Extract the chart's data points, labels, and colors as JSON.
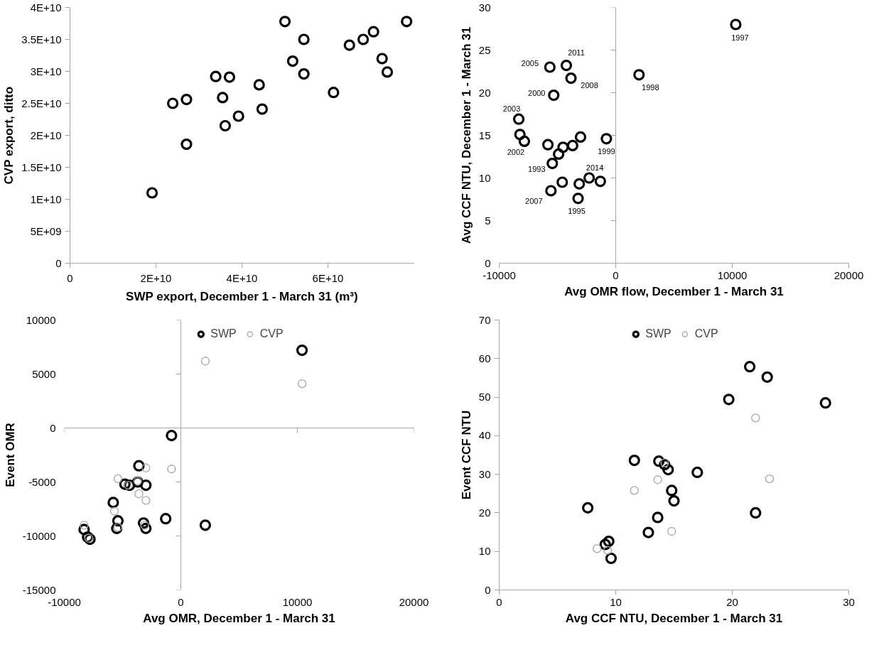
{
  "chart_data": [
    {
      "type": "scatter",
      "xlabel": "SWP export, December 1 - March 31 (m³)",
      "ylabel": "CVP export, ditto",
      "marker": "circle",
      "xlim": [
        0,
        80000000000
      ],
      "ylim": [
        0,
        40000000000
      ],
      "xticks": [
        0,
        {
          "value": 20000000000,
          "label": "2E+10"
        },
        {
          "value": 40000000000,
          "label": "4E+10"
        },
        {
          "value": 60000000000,
          "label": "6E+10"
        }
      ],
      "yticks": [
        0,
        {
          "value": 5000000000,
          "label": "5E+09"
        },
        {
          "value": 10000000000,
          "label": "1E+10"
        },
        {
          "value": 15000000000,
          "label": "1.5E+10"
        },
        {
          "value": 20000000000,
          "label": "2E+10"
        },
        {
          "value": 25000000000,
          "label": "2.5E+10"
        },
        {
          "value": 30000000000,
          "label": "3E+10"
        },
        {
          "value": 35000000000,
          "label": "3.5E+10"
        },
        {
          "value": 40000000000,
          "label": "4E+10"
        }
      ],
      "series": [
        {
          "color": "#000000",
          "x": [
            50000000000,
            54400000000,
            51800000000,
            54400000000,
            78300000000,
            70600000000,
            68200000000,
            65000000000,
            72600000000,
            73800000000,
            61300000000,
            33900000000,
            37100000000,
            44000000000,
            35500000000,
            27100000000,
            23900000000,
            44700000000,
            39200000000,
            36100000000,
            27100000000,
            19100000000
          ],
          "values": [
            37800000000,
            35000000000,
            31600000000,
            29600000000,
            37800000000,
            36200000000,
            35000000000,
            34100000000,
            32000000000,
            29900000000,
            26700000000,
            29200000000,
            29100000000,
            27900000000,
            25900000000,
            25600000000,
            25000000000,
            24100000000,
            23000000000,
            21500000000,
            18600000000,
            11000000000
          ]
        }
      ]
    },
    {
      "type": "scatter",
      "xlabel": "Avg OMR flow, December 1 - March 31",
      "ylabel": "Avg CCF NTU, December 1 - March 31",
      "marker": "circle",
      "xlim": [
        -10000,
        20000
      ],
      "ylim": [
        0,
        30
      ],
      "xticks": [
        -10000,
        0,
        10000,
        20000
      ],
      "yticks": [
        0,
        5,
        10,
        15,
        20,
        25,
        30
      ],
      "series": [
        {
          "color": "#000000",
          "x": [
            10300,
            2000,
            -5650,
            -4240,
            -3840,
            -5320,
            -8320,
            -8220,
            -7840,
            -5820,
            -4520,
            -3700,
            -3020,
            -800,
            -4900,
            -5440,
            -4590,
            -5560,
            -3130,
            -2280,
            -1320,
            -3230
          ],
          "values": [
            28.0,
            22.1,
            23.0,
            23.2,
            21.7,
            19.7,
            16.9,
            15.1,
            14.3,
            13.9,
            13.6,
            13.8,
            14.8,
            14.6,
            12.8,
            11.7,
            9.5,
            8.5,
            9.3,
            10.0,
            9.6,
            7.6
          ]
        }
      ],
      "annotations": [
        {
          "text": "1997",
          "x": 10300,
          "y": 28.0
        },
        {
          "text": "1998",
          "x": 2000,
          "y": 22.1
        },
        {
          "text": "2005",
          "x": -5650,
          "y": 23.0
        },
        {
          "text": "2011",
          "x": -4240,
          "y": 23.2
        },
        {
          "text": "2008",
          "x": -3840,
          "y": 21.7
        },
        {
          "text": "2000",
          "x": -5320,
          "y": 19.7
        },
        {
          "text": "2003",
          "x": -8320,
          "y": 16.9
        },
        {
          "text": "2002",
          "x": -7840,
          "y": 14.3
        },
        {
          "text": "1999",
          "x": -800,
          "y": 14.6
        },
        {
          "text": "1993",
          "x": -5440,
          "y": 11.7
        },
        {
          "text": "2014",
          "x": -2280,
          "y": 10.0
        },
        {
          "text": "2007",
          "x": -5560,
          "y": 8.5
        },
        {
          "text": "1995",
          "x": -3230,
          "y": 7.6
        }
      ]
    },
    {
      "type": "scatter",
      "xlabel": "Avg OMR, December 1 - March 31",
      "ylabel": "Event OMR",
      "marker": "circle",
      "legend": "top",
      "xlim": [
        -10000,
        20000
      ],
      "ylim": [
        -15000,
        10000
      ],
      "xticks": [
        -10000,
        0,
        10000,
        20000
      ],
      "yticks": [
        -15000,
        -10000,
        -5000,
        0,
        5000,
        10000
      ],
      "series": [
        {
          "name": "SWP",
          "color": "#000000",
          "x": [
            10400,
            2100,
            -800,
            -1300,
            -3600,
            -3000,
            -3200,
            -3000,
            -5800,
            -5400,
            -5500,
            -4800,
            -4400,
            -3700,
            -8300,
            -8000,
            -7800
          ],
          "values": [
            7200,
            -9000,
            -700,
            -8400,
            -3500,
            -5300,
            -8800,
            -9300,
            -6900,
            -8600,
            -9300,
            -5200,
            -5300,
            -5000,
            -9400,
            -10100,
            -10300
          ]
        },
        {
          "name": "CVP",
          "color": "#a6a6a6",
          "x": [
            2100,
            10400,
            -800,
            -3000,
            -5400,
            -3600,
            -3000,
            -5700,
            -8300,
            -3700,
            -4500,
            -7900,
            -5400,
            -3100
          ],
          "values": [
            6200,
            4100,
            -3800,
            -3700,
            -4700,
            -6100,
            -6700,
            -7700,
            -9000,
            -4900,
            -5300,
            -10200,
            -9200,
            -9000
          ]
        }
      ]
    },
    {
      "type": "scatter",
      "xlabel": "Avg CCF NTU, December 1 - March 31",
      "ylabel": "Event CCF NTU",
      "marker": "circle",
      "legend": "top",
      "xlim": [
        0,
        30
      ],
      "ylim": [
        0,
        70
      ],
      "xticks": [
        0,
        10,
        20,
        30
      ],
      "yticks": [
        0,
        10,
        20,
        30,
        40,
        50,
        60,
        70
      ],
      "series": [
        {
          "name": "SWP",
          "color": "#000000",
          "x": [
            21.5,
            23.0,
            19.7,
            28.0,
            11.6,
            13.7,
            14.2,
            14.5,
            17.0,
            14.8,
            15.0,
            7.6,
            22.0,
            13.6,
            12.8,
            9.4,
            9.1,
            9.6
          ],
          "values": [
            57.9,
            55.2,
            49.4,
            48.5,
            33.6,
            33.4,
            32.5,
            31.2,
            30.5,
            25.8,
            23.1,
            21.3,
            20.0,
            18.8,
            14.9,
            12.6,
            11.8,
            8.2
          ]
        },
        {
          "name": "CVP",
          "color": "#a6a6a6",
          "x": [
            22.0,
            23.2,
            13.6,
            11.6,
            14.8,
            8.4,
            9.3,
            14.2
          ],
          "values": [
            44.6,
            28.8,
            28.6,
            25.8,
            15.2,
            10.7,
            10.3,
            33.0
          ]
        }
      ]
    }
  ]
}
